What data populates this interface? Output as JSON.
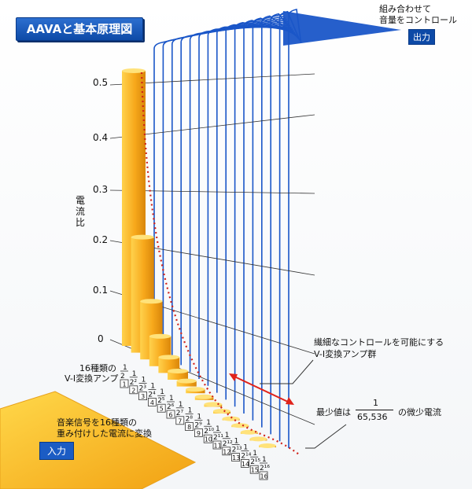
{
  "title": "AAVAと基本原理図",
  "y_axis": {
    "label": "電流比",
    "ticks": [
      "0.5",
      "0.4",
      "0.3",
      "0.2",
      "0.1",
      "0"
    ]
  },
  "amp_label": "16種類の\nV-I変換アンプ",
  "amp_label_line1": "16種類の",
  "amp_label_line2": "V-I変換アンプ",
  "output": {
    "text_line1": "組み合わせて",
    "text_line2": "音量をコントロール",
    "tag": "出力"
  },
  "input": {
    "text_line1": "音楽信号を16種類の",
    "text_line2": "重み付けした電流に変換",
    "tag": "入力"
  },
  "control_note": {
    "line1": "繊細なコントロールを可能にする",
    "line2": "V-I変換アンプ群"
  },
  "min_value_note": {
    "prefix": "最少値は",
    "numerator": "1",
    "denominator": "65,536",
    "suffix": "の微少電流"
  },
  "amp_indices": [
    "1",
    "2",
    "3",
    "4",
    "5",
    "6",
    "7",
    "8",
    "9",
    "10",
    "11",
    "12",
    "13",
    "14",
    "15",
    "16"
  ],
  "fractions": [
    {
      "num": "1",
      "den": "2"
    },
    {
      "num": "1",
      "den": "2²"
    },
    {
      "num": "1",
      "den": "2³"
    },
    {
      "num": "1",
      "den": "2⁴"
    },
    {
      "num": "1",
      "den": "2⁵"
    },
    {
      "num": "1",
      "den": "2⁶"
    },
    {
      "num": "1",
      "den": "2⁷"
    },
    {
      "num": "1",
      "den": "2⁸"
    },
    {
      "num": "1",
      "den": "2⁹"
    },
    {
      "num": "1",
      "den": "2¹⁰"
    },
    {
      "num": "1",
      "den": "2¹¹"
    },
    {
      "num": "1",
      "den": "2¹²"
    },
    {
      "num": "1",
      "den": "2¹³"
    },
    {
      "num": "1",
      "den": "2¹⁴"
    },
    {
      "num": "1",
      "den": "2¹⁵"
    },
    {
      "num": "1",
      "den": "2¹⁶"
    }
  ],
  "colors": {
    "bar_main": "#f7a81b",
    "bar_light": "#ffd24d",
    "bar_dark": "#d9860a",
    "wire_blue": "#1a56c8",
    "dotted_curve": "#d0221a",
    "arrow_red": "#e0231b",
    "title_bg": "#0d4aa7"
  }
}
